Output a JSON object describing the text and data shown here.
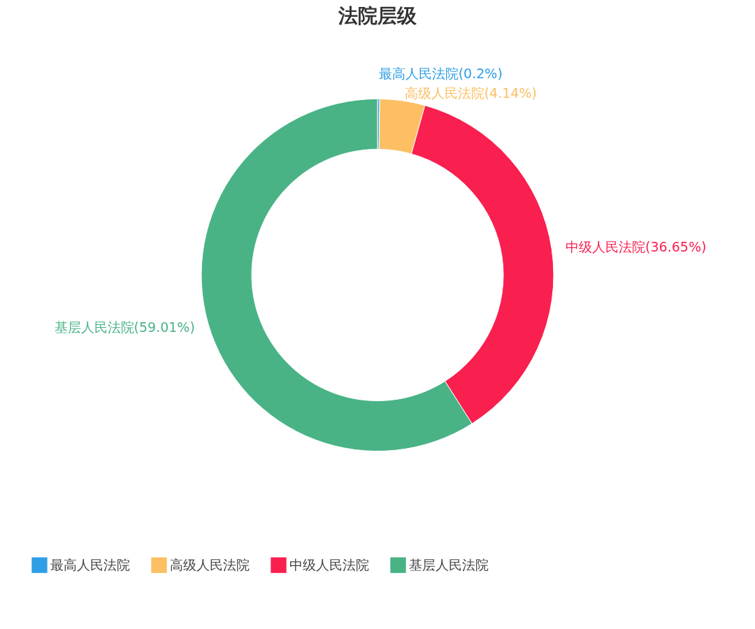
{
  "chart_data": {
    "type": "donut",
    "title": "法院层级",
    "categories": [
      "最高人民法院",
      "高级人民法院",
      "中级人民法院",
      "基层人民法院"
    ],
    "values": [
      0.2,
      4.14,
      36.65,
      59.01
    ],
    "colors": [
      "#2e9fe6",
      "#fcbf63",
      "#f91f4f",
      "#49b386"
    ],
    "value_labels": [
      "最高人民法院(0.2%)",
      "高级人民法院(4.14%)",
      "中级人民法院(36.65%)",
      "基层人民法院(59.01%)"
    ],
    "legend": "bottom"
  }
}
